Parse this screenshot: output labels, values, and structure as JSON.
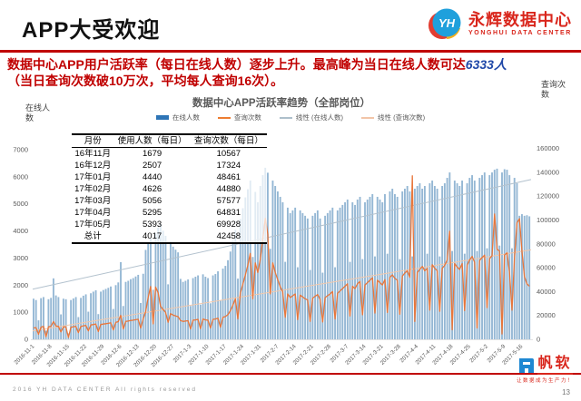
{
  "slide": {
    "title": "APP大受欢迎",
    "copyright": "2016 YH DATA CENTER All rights reserved",
    "page_number": "13"
  },
  "brand": {
    "badge": "YH",
    "name": "永辉数据中心",
    "name_en": "YONGHUI DATA CENTER"
  },
  "vendor": {
    "name": "帆软",
    "tagline": "让数据成为生产力！"
  },
  "headline": {
    "line1_red": "数据中心APP用户活跃率（每日在线人数）逐步上升。最高峰为当日在线人数可达",
    "line1_blue": "6333人",
    "line2": "（当日查询次数破10万次，平均每人查询16次）。"
  },
  "chart": {
    "title": "数据中心APP活跃率趋势（全部岗位）",
    "left_axis_title": "在线人数",
    "right_axis_title": "查询次数",
    "legend": [
      {
        "label": "在线人数",
        "type": "bar",
        "color": "#2E75B6"
      },
      {
        "label": "查询次数",
        "type": "line",
        "color": "#ED7D31"
      },
      {
        "label": "线性 (在线人数)",
        "type": "line",
        "color": "#AEBFCB"
      },
      {
        "label": "线性 (查询次数)",
        "type": "line",
        "color": "#F2C5A8"
      }
    ],
    "colors": {
      "bar": "#94B7D4",
      "query_line": "#E8763B",
      "trend_online": "#B3C2CE",
      "trend_query": "#F2C9AD",
      "axis_text": "#595959"
    }
  },
  "table": {
    "headers": [
      "月份",
      "使用人数（每日）",
      "查询次数（每日）"
    ],
    "rows": [
      [
        "16年11月",
        "1679",
        "10567"
      ],
      [
        "16年12月",
        "2507",
        "17324"
      ],
      [
        "17年01月",
        "4440",
        "48461"
      ],
      [
        "17年02月",
        "4626",
        "44880"
      ],
      [
        "17年03月",
        "5056",
        "57577"
      ],
      [
        "17年04月",
        "5295",
        "64831"
      ],
      [
        "17年05月",
        "5393",
        "69928"
      ],
      [
        "总计",
        "4017",
        "42458"
      ]
    ]
  },
  "chart_data": {
    "type": "combo",
    "title": "数据中心APP活跃率趋势（全部岗位）",
    "x_start": "2016-11-1",
    "x_step_days": 1,
    "x_axis_labels": [
      "2016-11-1",
      "2016-11-8",
      "2016-11-15",
      "2016-11-22",
      "2016-11-29",
      "2016-12-6",
      "2016-12-13",
      "2016-12-20",
      "2016-12-27",
      "2017-1-3",
      "2017-1-10",
      "2017-1-17",
      "2017-1-24",
      "2017-1-31",
      "2017-2-7",
      "2017-2-14",
      "2017-2-21",
      "2017-2-28",
      "2017-3-7",
      "2017-3-14",
      "2017-3-21",
      "2017-3-28",
      "2017-4-4",
      "2017-4-11",
      "2017-4-18",
      "2017-4-25",
      "2017-5-2",
      "2017-5-9",
      "2017-5-16"
    ],
    "left_axis": {
      "label": "在线人数",
      "range": [
        0,
        7000
      ],
      "ticks": [
        0,
        1000,
        2000,
        3000,
        4000,
        5000,
        6000,
        7000
      ]
    },
    "right_axis": {
      "label": "查询次数",
      "range": [
        0,
        160000
      ],
      "ticks": [
        0,
        20000,
        40000,
        60000,
        80000,
        100000,
        120000,
        140000,
        160000
      ]
    },
    "series": [
      {
        "name": "在线人数",
        "type": "bar",
        "axis": "left",
        "values": [
          1500,
          1450,
          700,
          1520,
          1560,
          320,
          1480,
          1530,
          2250,
          1620,
          1560,
          920,
          1500,
          1480,
          220,
          1450,
          1510,
          1560,
          820,
          1530,
          1610,
          1660,
          1020,
          1700,
          1760,
          1810,
          930,
          1760,
          1820,
          1860,
          1900,
          1950,
          1120,
          2000,
          2100,
          2850,
          1230,
          2120,
          2160,
          2220,
          2260,
          2320,
          2380,
          1340,
          2420,
          3300,
          3520,
          3720,
          1830,
          3920,
          4120,
          4250,
          4010,
          3820,
          2030,
          3620,
          3420,
          3310,
          3210,
          2230,
          2120,
          2160,
          2210,
          1230,
          2260,
          2310,
          2360,
          1280,
          2400,
          2310,
          2260,
          1330,
          2360,
          2410,
          2510,
          1430,
          2610,
          2710,
          2920,
          3240,
          3640,
          4040,
          2240,
          4440,
          4840,
          5240,
          5540,
          5860,
          3040,
          5440,
          5060,
          5660,
          6060,
          6333,
          6150,
          3340,
          5860,
          5660,
          5460,
          5260,
          5060,
          2860,
          4860,
          4660,
          4760,
          4860,
          2660,
          4760,
          4660,
          4560,
          4460,
          2560,
          4560,
          4660,
          4760,
          4460,
          2460,
          4560,
          4660,
          4760,
          4860,
          2660,
          4760,
          4860,
          4960,
          5060,
          5160,
          2860,
          5060,
          4960,
          5160,
          5260,
          2960,
          5060,
          5160,
          5260,
          5360,
          3060,
          5260,
          5160,
          5060,
          5360,
          3160,
          5460,
          5560,
          5360,
          5260,
          2960,
          5460,
          5560,
          5660,
          5460,
          3060,
          5560,
          5660,
          5760,
          5560,
          5660,
          3160,
          5760,
          5860,
          5660,
          5560,
          3060,
          5660,
          5760,
          5960,
          6160,
          3260,
          5860,
          5760,
          5660,
          5860,
          3160,
          5760,
          5960,
          6060,
          5860,
          3260,
          5960,
          6060,
          6160,
          3360,
          6060,
          6160,
          6260,
          6300,
          3460,
          6160,
          6280,
          6260,
          6060,
          3360,
          5960,
          5760,
          4560,
          4620,
          4560,
          4580,
          4540
        ]
      },
      {
        "name": "查询次数",
        "type": "line",
        "axis": "right",
        "values": [
          9500,
          9800,
          4200,
          10200,
          10800,
          2100,
          10500,
          10900,
          14800,
          11200,
          10800,
          6200,
          10400,
          10300,
          1500,
          10100,
          10600,
          10900,
          5600,
          10700,
          11300,
          11600,
          7100,
          12000,
          12400,
          12800,
          6500,
          12400,
          12800,
          13100,
          13400,
          13800,
          7900,
          14100,
          14800,
          20100,
          8700,
          15000,
          15300,
          15700,
          16000,
          16400,
          16800,
          9400,
          17100,
          23300,
          35000,
          44200,
          12900,
          43800,
          39000,
          27600,
          24900,
          22600,
          14300,
          21500,
          20300,
          19600,
          19000,
          15700,
          15000,
          15300,
          15600,
          8700,
          16000,
          16300,
          16700,
          9000,
          17000,
          16300,
          16000,
          9400,
          16700,
          17000,
          17700,
          10100,
          18400,
          19100,
          20600,
          24000,
          28500,
          34000,
          17000,
          39000,
          46000,
          54000,
          62000,
          72000,
          34000,
          64000,
          56000,
          67000,
          84000,
          101328,
          88000,
          38000,
          64000,
          56000,
          50000,
          44000,
          40000,
          18500,
          38000,
          35000,
          36500,
          38000,
          16500,
          37000,
          35500,
          34000,
          33000,
          15000,
          34500,
          36000,
          37500,
          33500,
          14500,
          35000,
          36500,
          38000,
          40000,
          17000,
          38500,
          40500,
          42500,
          44500,
          46500,
          19500,
          44500,
          42500,
          46500,
          48500,
          20500,
          45500,
          47500,
          49500,
          51500,
          22000,
          49500,
          47500,
          45500,
          50000,
          22500,
          52000,
          54000,
          51000,
          49500,
          21000,
          53000,
          55500,
          57500,
          52000,
          137000,
          15000,
          56000,
          58500,
          61000,
          57500,
          59500,
          24500,
          62500,
          59500,
          57500,
          23500,
          59500,
          62000,
          66500,
          90500,
          8000,
          63500,
          60500,
          58500,
          63500,
          24000,
          62000,
          66500,
          69500,
          64500,
          9500,
          66000,
          68500,
          70500,
          26500,
          67500,
          70000,
          105000,
          75500,
          74000,
          4500,
          70500,
          72500,
          56500,
          24500,
          68000,
          97500,
          101000,
          73500,
          52500,
          46500,
          44500
        ]
      },
      {
        "name": "线性 (在线人数)",
        "type": "trend",
        "axis": "left",
        "start": 1850,
        "end": 5900
      },
      {
        "name": "线性 (查询次数)",
        "type": "trend",
        "axis": "right",
        "start": 7000,
        "end": 75000
      }
    ]
  }
}
